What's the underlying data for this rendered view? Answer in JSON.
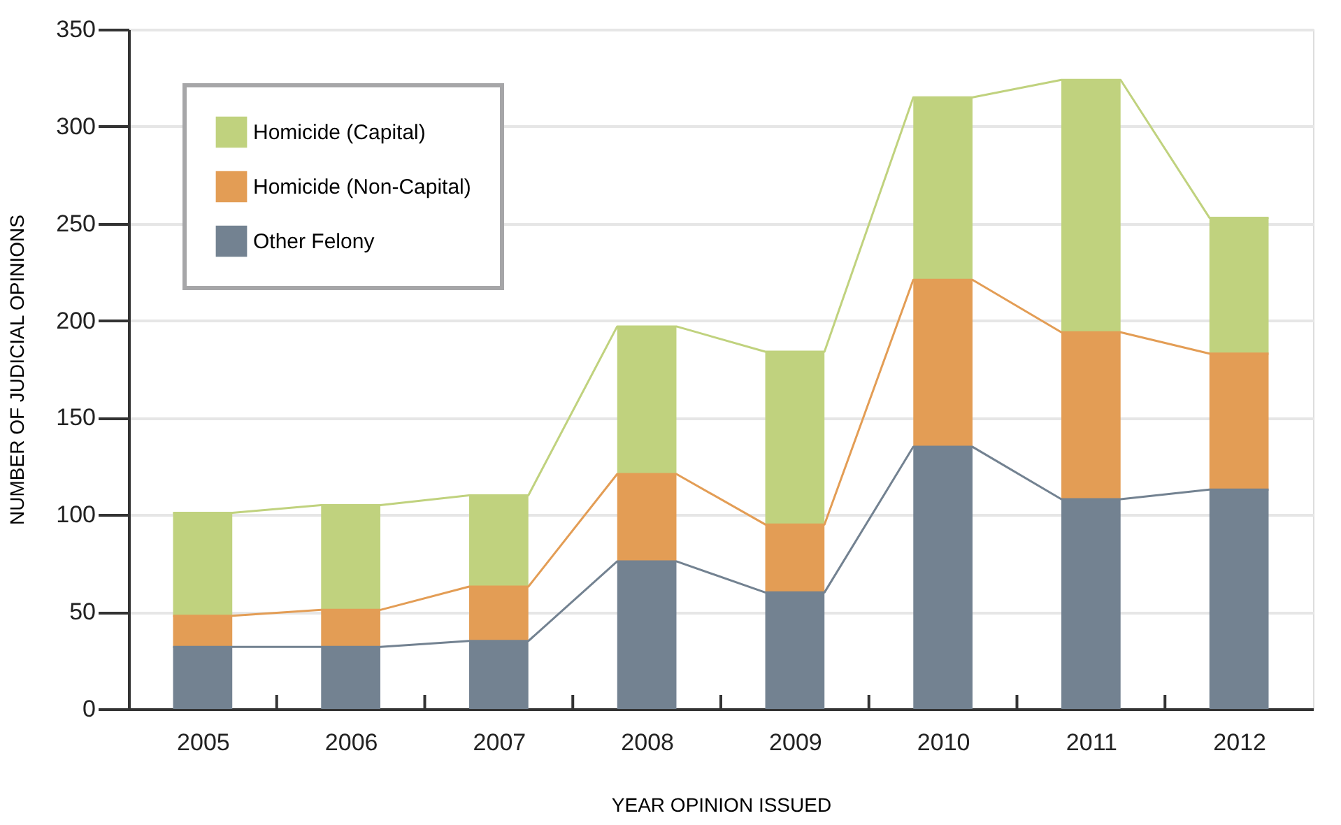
{
  "chart_data": {
    "type": "bar",
    "stacked": true,
    "xlabel": "YEAR OPINION ISSUED",
    "ylabel": "NUMBER OF JUDICIAL OPINIONS",
    "categories": [
      "2005",
      "2006",
      "2007",
      "2008",
      "2009",
      "2010",
      "2011",
      "2012"
    ],
    "series": [
      {
        "name": "Other Felony",
        "color": "#738291",
        "values": [
          32,
          32,
          35,
          76,
          60,
          135,
          108,
          113
        ]
      },
      {
        "name": "Homicide (Non-Capital)",
        "color": "#e39d55",
        "values": [
          16,
          19,
          28,
          45,
          35,
          86,
          86,
          70
        ]
      },
      {
        "name": "Homicide (Capital)",
        "color": "#c0d27e",
        "values": [
          53,
          54,
          47,
          76,
          89,
          94,
          130,
          70
        ]
      }
    ],
    "ylim": [
      0,
      350
    ],
    "yticks": [
      0,
      50,
      100,
      150,
      200,
      250,
      300,
      350
    ],
    "grid": "y",
    "legend": "top left"
  }
}
